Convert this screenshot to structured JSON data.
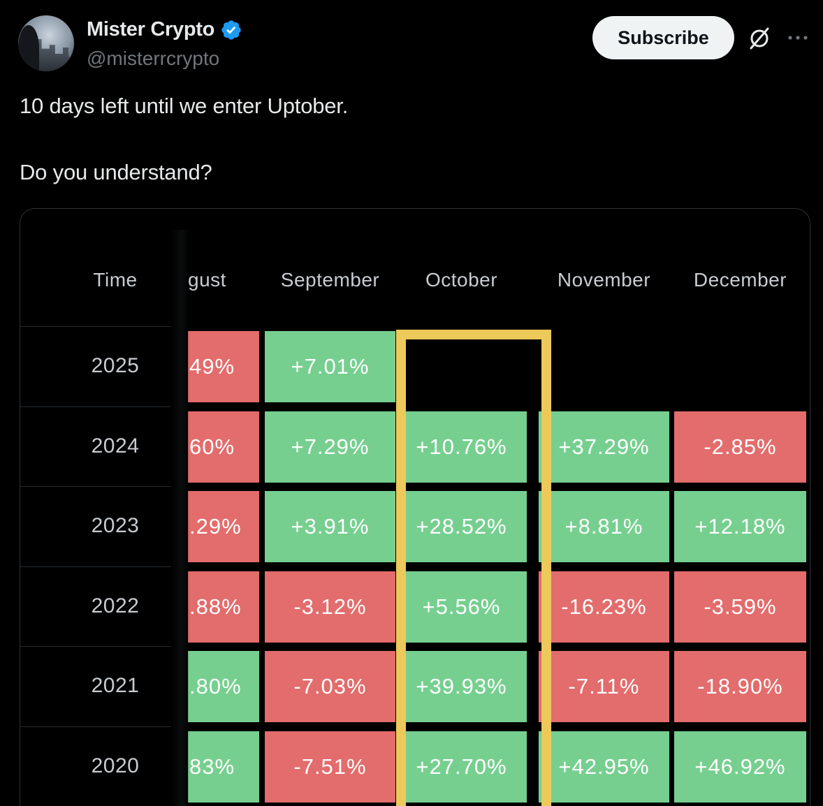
{
  "author": {
    "display_name": "Mister Crypto",
    "handle": "@misterrcrypto",
    "verified_icon": "verified-badge-icon",
    "badge_color": "#1d9bf0"
  },
  "actions": {
    "subscribe_label": "Subscribe",
    "grok_icon": "grok-icon",
    "more_icon": "more-icon"
  },
  "post": {
    "line1": "10 days left until we enter Uptober.",
    "line2": "Do you understand?"
  },
  "chart_data": {
    "type": "table",
    "title": "",
    "columns": [
      "Time",
      "gust",
      "September",
      "October",
      "November",
      "December"
    ],
    "rows": [
      {
        "year": "2025",
        "august": "49%",
        "september": "+7.01%",
        "october": "",
        "november": "",
        "december": ""
      },
      {
        "year": "2024",
        "august": "60%",
        "september": "+7.29%",
        "october": "+10.76%",
        "november": "+37.29%",
        "december": "-2.85%"
      },
      {
        "year": "2023",
        "august": ".29%",
        "september": "+3.91%",
        "october": "+28.52%",
        "november": "+8.81%",
        "december": "+12.18%"
      },
      {
        "year": "2022",
        "august": ".88%",
        "september": "-3.12%",
        "october": "+5.56%",
        "november": "-16.23%",
        "december": "-3.59%"
      },
      {
        "year": "2021",
        "august": ".80%",
        "september": "-7.03%",
        "october": "+39.93%",
        "november": "-7.11%",
        "december": "-18.90%"
      },
      {
        "year": "2020",
        "august": "83%",
        "september": "-7.51%",
        "october": "+27.70%",
        "november": "+42.95%",
        "december": "+46.92%"
      }
    ],
    "august_sign": [
      "neg",
      "neg",
      "neg",
      "neg",
      "pos",
      "pos"
    ],
    "colors": {
      "positive": "#76cf8f",
      "negative": "#e36c6c",
      "highlight": "#ecc95a"
    },
    "highlighted_column": "October"
  }
}
